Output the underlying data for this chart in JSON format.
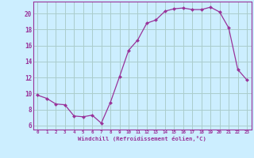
{
  "x": [
    0,
    1,
    2,
    3,
    4,
    5,
    6,
    7,
    8,
    9,
    10,
    11,
    12,
    13,
    14,
    15,
    16,
    17,
    18,
    19,
    20,
    21,
    22,
    23
  ],
  "y": [
    9.8,
    9.4,
    8.7,
    8.6,
    7.2,
    7.1,
    7.3,
    6.3,
    8.9,
    12.1,
    15.4,
    16.7,
    18.8,
    19.2,
    20.3,
    20.6,
    20.7,
    20.5,
    20.5,
    20.8,
    20.2,
    18.2,
    13.0,
    11.7
  ],
  "line_color": "#993399",
  "marker": "D",
  "marker_size": 2.0,
  "bg_color": "#cceeff",
  "grid_color": "#aacccc",
  "xlabel": "Windchill (Refroidissement éolien,°C)",
  "ylim": [
    5.5,
    21.5
  ],
  "xlim": [
    -0.5,
    23.5
  ],
  "yticks": [
    6,
    8,
    10,
    12,
    14,
    16,
    18,
    20
  ],
  "xticks": [
    0,
    1,
    2,
    3,
    4,
    5,
    6,
    7,
    8,
    9,
    10,
    11,
    12,
    13,
    14,
    15,
    16,
    17,
    18,
    19,
    20,
    21,
    22,
    23
  ],
  "axis_color": "#993399",
  "label_color": "#993399",
  "tick_color": "#993399",
  "font_family": "monospace",
  "tick_fontsize_x": 4.2,
  "tick_fontsize_y": 5.5,
  "xlabel_fontsize": 5.2,
  "linewidth": 0.9
}
